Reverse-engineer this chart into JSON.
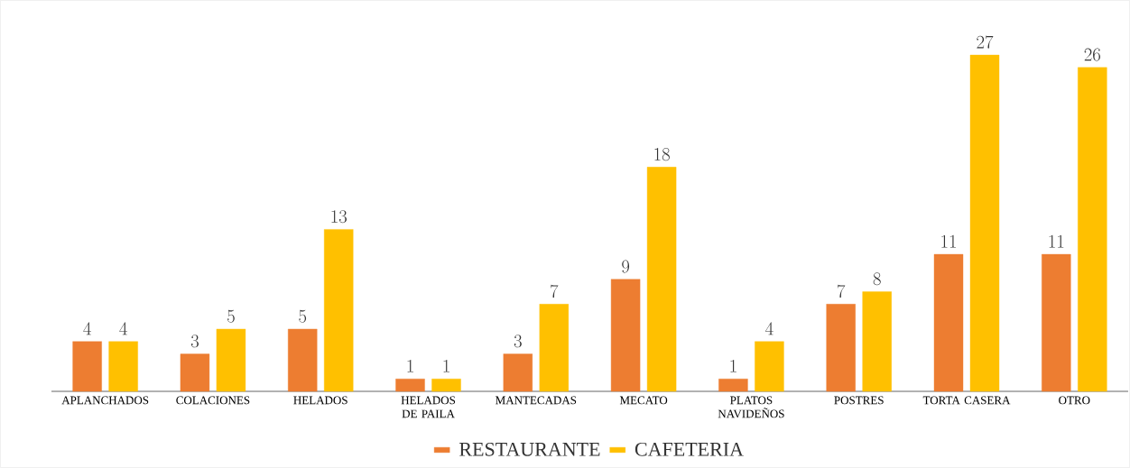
{
  "chart_data": {
    "type": "bar",
    "categories": [
      "APLANCHADOS",
      "COLACIONES",
      "HELADOS",
      "HELADOS DE PAILA",
      "MANTECADAS",
      "MECATO",
      "PLATOS NAVIDEÑOS",
      "POSTRES",
      "TORTA CASERA",
      "OTRO"
    ],
    "series": [
      {
        "name": "RESTAURANTE",
        "color": "#ed7d31",
        "values": [
          4,
          3,
          5,
          1,
          3,
          9,
          1,
          7,
          11,
          11
        ]
      },
      {
        "name": "CAFETERIA",
        "color": "#ffc000",
        "values": [
          4,
          5,
          13,
          1,
          7,
          18,
          4,
          8,
          27,
          26
        ]
      }
    ],
    "data_labels": true,
    "legend": "bottom"
  }
}
